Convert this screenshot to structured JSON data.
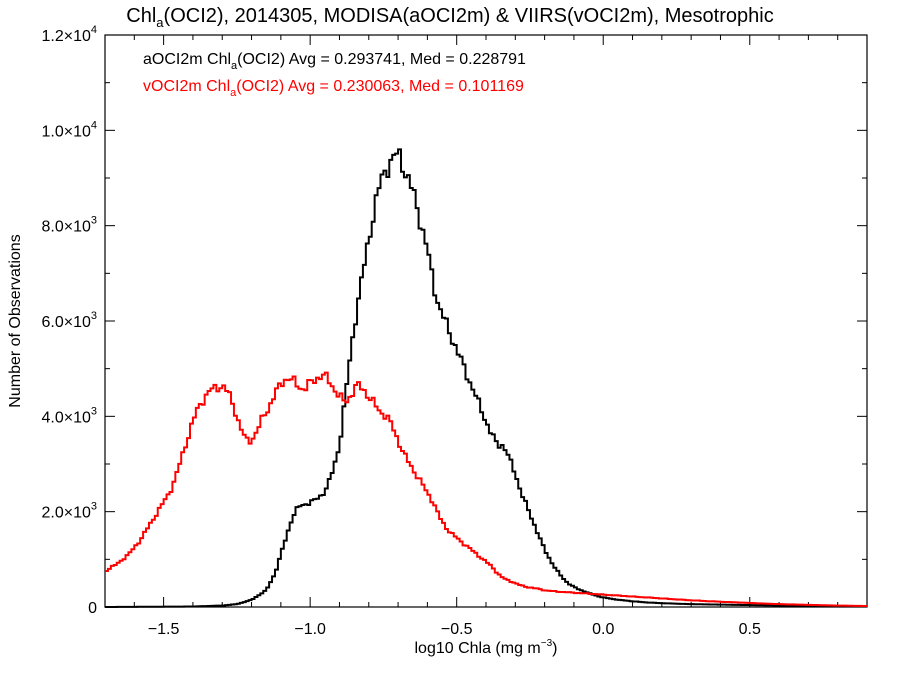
{
  "chart_data": {
    "type": "line",
    "title": {
      "prefix": "Chl",
      "sub": "a",
      "suffix": "(OCI2), 2014305, MODISA(aOCI2m) & VIIRS(vOCI2m), Mesotrophic"
    },
    "xlabel": {
      "main": "log10 Chla (mg m",
      "sup": "−3",
      "close": ")"
    },
    "ylabel": "Number of Observations",
    "xlim": [
      -1.7,
      0.9
    ],
    "ylim": [
      0,
      12000
    ],
    "grid": false,
    "x_ticks": [
      {
        "value": -1.5,
        "label": "−1.5"
      },
      {
        "value": -1.0,
        "label": "−1.0"
      },
      {
        "value": -0.5,
        "label": "−0.5"
      },
      {
        "value": 0.0,
        "label": "0.0"
      },
      {
        "value": 0.5,
        "label": "0.5"
      }
    ],
    "y_ticks": [
      {
        "value": 0,
        "mant": "0",
        "exp": ""
      },
      {
        "value": 2000,
        "mant": "2.0×10",
        "exp": "3"
      },
      {
        "value": 4000,
        "mant": "4.0×10",
        "exp": "3"
      },
      {
        "value": 6000,
        "mant": "6.0×10",
        "exp": "3"
      },
      {
        "value": 8000,
        "mant": "8.0×10",
        "exp": "3"
      },
      {
        "value": 10000,
        "mant": "1.0×10",
        "exp": "4"
      },
      {
        "value": 12000,
        "mant": "1.2×10",
        "exp": "4"
      }
    ],
    "legend_position": "top-left",
    "annotations": [
      {
        "color": "#000000",
        "pre": "aOCI2m Chl",
        "sub": "a",
        "post": "(OCI2) Avg = 0.293741, Med = 0.228791"
      },
      {
        "color": "#ff0000",
        "pre": "vOCI2m Chl",
        "sub": "a",
        "post": "(OCI2) Avg = 0.230063, Med = 0.101169"
      }
    ],
    "series": [
      {
        "color": "#000000",
        "x": [
          -1.7,
          -1.4,
          -1.3,
          -1.25,
          -1.2,
          -1.15,
          -1.12,
          -1.1,
          -1.08,
          -1.06,
          -1.04,
          -1.02,
          -1.0,
          -0.98,
          -0.96,
          -0.94,
          -0.92,
          -0.9,
          -0.88,
          -0.86,
          -0.84,
          -0.82,
          -0.8,
          -0.78,
          -0.76,
          -0.74,
          -0.72,
          -0.71,
          -0.7,
          -0.69,
          -0.68,
          -0.66,
          -0.64,
          -0.62,
          -0.6,
          -0.58,
          -0.56,
          -0.54,
          -0.52,
          -0.5,
          -0.48,
          -0.46,
          -0.44,
          -0.42,
          -0.4,
          -0.38,
          -0.36,
          -0.34,
          -0.32,
          -0.3,
          -0.28,
          -0.26,
          -0.24,
          -0.22,
          -0.2,
          -0.18,
          -0.16,
          -0.14,
          -0.12,
          -0.1,
          -0.08,
          -0.06,
          -0.04,
          -0.02,
          0.0,
          0.03,
          0.06,
          0.1,
          0.15,
          0.2,
          0.3,
          0.4,
          0.5,
          0.6,
          0.7,
          0.8,
          0.9
        ],
        "y": [
          0,
          10,
          30,
          60,
          150,
          350,
          700,
          1100,
          1500,
          1900,
          2100,
          2150,
          2200,
          2250,
          2350,
          2550,
          2900,
          3400,
          4400,
          5400,
          6300,
          7000,
          7700,
          8400,
          8900,
          9200,
          9400,
          9450,
          9500,
          9400,
          9200,
          8900,
          8500,
          8000,
          7500,
          6800,
          6300,
          6000,
          5700,
          5400,
          5100,
          4800,
          4500,
          4200,
          3900,
          3600,
          3400,
          3400,
          3100,
          2800,
          2400,
          2100,
          1800,
          1500,
          1200,
          980,
          780,
          620,
          500,
          420,
          360,
          320,
          270,
          230,
          200,
          170,
          145,
          120,
          95,
          80,
          60,
          50,
          40,
          30,
          22,
          15,
          10
        ]
      },
      {
        "color": "#ff0000",
        "x": [
          -1.7,
          -1.66,
          -1.62,
          -1.58,
          -1.54,
          -1.5,
          -1.48,
          -1.46,
          -1.44,
          -1.42,
          -1.4,
          -1.38,
          -1.36,
          -1.34,
          -1.32,
          -1.3,
          -1.28,
          -1.26,
          -1.24,
          -1.22,
          -1.2,
          -1.18,
          -1.16,
          -1.14,
          -1.12,
          -1.1,
          -1.08,
          -1.06,
          -1.04,
          -1.02,
          -1.0,
          -0.98,
          -0.96,
          -0.94,
          -0.92,
          -0.9,
          -0.88,
          -0.86,
          -0.84,
          -0.82,
          -0.8,
          -0.78,
          -0.76,
          -0.74,
          -0.72,
          -0.7,
          -0.68,
          -0.66,
          -0.64,
          -0.62,
          -0.6,
          -0.58,
          -0.56,
          -0.54,
          -0.52,
          -0.5,
          -0.48,
          -0.46,
          -0.44,
          -0.42,
          -0.4,
          -0.38,
          -0.36,
          -0.34,
          -0.32,
          -0.3,
          -0.28,
          -0.26,
          -0.24,
          -0.22,
          -0.2,
          -0.15,
          -0.1,
          -0.05,
          0.0,
          0.05,
          0.1,
          0.2,
          0.3,
          0.4,
          0.5,
          0.6,
          0.7,
          0.8,
          0.9
        ],
        "y": [
          750,
          900,
          1100,
          1400,
          1800,
          2200,
          2400,
          2700,
          3100,
          3500,
          3900,
          4200,
          4400,
          4550,
          4600,
          4650,
          4500,
          4200,
          3800,
          3500,
          3500,
          3700,
          4000,
          4200,
          4450,
          4700,
          4800,
          4750,
          4650,
          4550,
          4700,
          4800,
          4850,
          4800,
          4600,
          4400,
          4300,
          4450,
          4650,
          4600,
          4400,
          4250,
          4100,
          4000,
          3800,
          3500,
          3200,
          3000,
          2800,
          2600,
          2400,
          2200,
          1900,
          1700,
          1550,
          1450,
          1350,
          1250,
          1150,
          1050,
          950,
          850,
          700,
          600,
          550,
          500,
          450,
          420,
          400,
          380,
          350,
          320,
          300,
          280,
          260,
          240,
          220,
          180,
          140,
          110,
          85,
          60,
          45,
          30,
          20
        ]
      }
    ]
  }
}
